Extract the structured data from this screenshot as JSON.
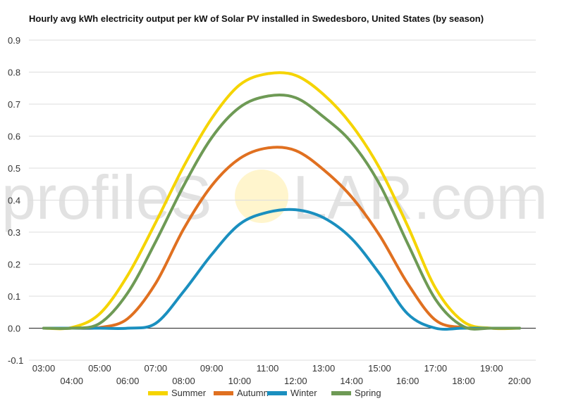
{
  "chart_data": {
    "type": "line",
    "title": "Hourly avg kWh electricity output per kW of Solar PV installed in Swedesboro, United States (by season)",
    "watermark": {
      "text_left": "profileS",
      "text_right": "LAR.com"
    },
    "x": [
      "03:00",
      "04:00",
      "05:00",
      "06:00",
      "07:00",
      "08:00",
      "09:00",
      "10:00",
      "11:00",
      "12:00",
      "13:00",
      "14:00",
      "15:00",
      "16:00",
      "17:00",
      "18:00",
      "19:00",
      "20:00"
    ],
    "xticks_upper": [
      "03:00",
      "05:00",
      "07:00",
      "09:00",
      "11:00",
      "13:00",
      "15:00",
      "17:00",
      "19:00"
    ],
    "xticks_lower": [
      "04:00",
      "06:00",
      "08:00",
      "10:00",
      "12:00",
      "14:00",
      "16:00",
      "18:00",
      "20:00"
    ],
    "ylim": [
      -0.1,
      0.9
    ],
    "yticks": [
      -0.1,
      0.0,
      0.1,
      0.2,
      0.3,
      0.4,
      0.5,
      0.6,
      0.7,
      0.8,
      0.9
    ],
    "ytick_labels": [
      "-0.1",
      "0.0",
      "0.1",
      "0.2",
      "0.3",
      "0.4",
      "0.5",
      "0.6",
      "0.7",
      "0.8",
      "0.9"
    ],
    "grid": true,
    "legend_position": "bottom",
    "series": [
      {
        "name": "Summer",
        "color": "#f5d400",
        "values": [
          0.0,
          0.002,
          0.045,
          0.165,
          0.33,
          0.505,
          0.655,
          0.76,
          0.795,
          0.79,
          0.73,
          0.635,
          0.5,
          0.32,
          0.125,
          0.02,
          0.0,
          0.0
        ]
      },
      {
        "name": "Autumn",
        "color": "#e07020",
        "values": [
          0.0,
          0.0,
          0.002,
          0.03,
          0.14,
          0.31,
          0.445,
          0.53,
          0.563,
          0.555,
          0.495,
          0.41,
          0.29,
          0.14,
          0.025,
          0.002,
          0.0,
          0.0
        ]
      },
      {
        "name": "Winter",
        "color": "#1a8fbf",
        "values": [
          0.0,
          0.0,
          0.0,
          0.0,
          0.015,
          0.115,
          0.23,
          0.325,
          0.362,
          0.37,
          0.345,
          0.28,
          0.17,
          0.045,
          0.0,
          0.0,
          0.0,
          0.0
        ]
      },
      {
        "name": "Spring",
        "color": "#6e9a55",
        "values": [
          0.0,
          0.0,
          0.015,
          0.11,
          0.27,
          0.445,
          0.595,
          0.69,
          0.725,
          0.72,
          0.66,
          0.58,
          0.45,
          0.265,
          0.09,
          0.005,
          0.0,
          0.0
        ]
      }
    ]
  }
}
